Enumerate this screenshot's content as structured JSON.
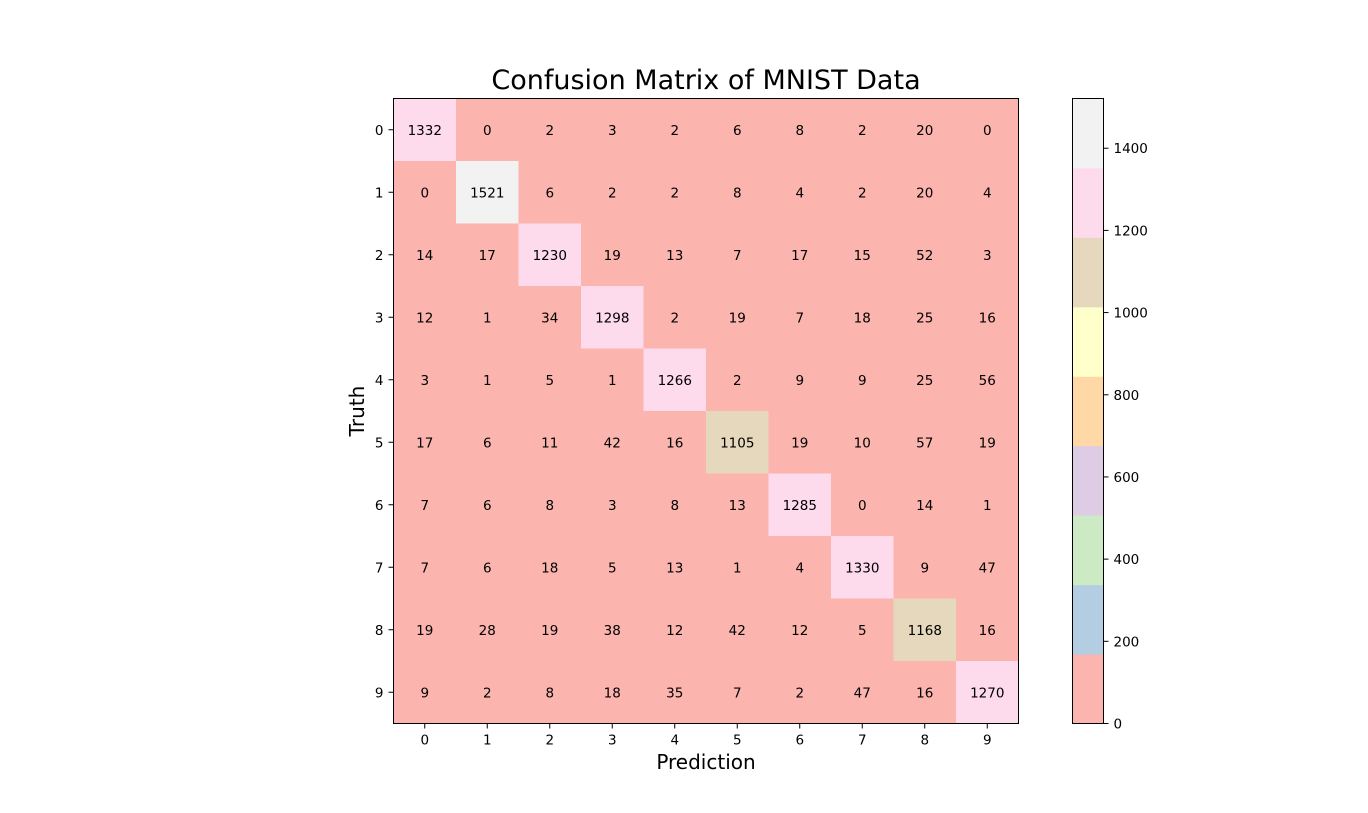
{
  "chart_data": {
    "type": "heatmap",
    "title": "Confusion Matrix of MNIST Data",
    "xlabel": "Prediction",
    "ylabel": "Truth",
    "x_categories": [
      "0",
      "1",
      "2",
      "3",
      "4",
      "5",
      "6",
      "7",
      "8",
      "9"
    ],
    "y_categories": [
      "0",
      "1",
      "2",
      "3",
      "4",
      "5",
      "6",
      "7",
      "8",
      "9"
    ],
    "matrix": [
      [
        1332,
        0,
        2,
        3,
        2,
        6,
        8,
        2,
        20,
        0
      ],
      [
        0,
        1521,
        6,
        2,
        2,
        8,
        4,
        2,
        20,
        4
      ],
      [
        14,
        17,
        1230,
        19,
        13,
        7,
        17,
        15,
        52,
        3
      ],
      [
        12,
        1,
        34,
        1298,
        2,
        19,
        7,
        18,
        25,
        16
      ],
      [
        3,
        1,
        5,
        1,
        1266,
        2,
        9,
        9,
        25,
        56
      ],
      [
        17,
        6,
        11,
        42,
        16,
        1105,
        19,
        10,
        57,
        19
      ],
      [
        7,
        6,
        8,
        3,
        8,
        13,
        1285,
        0,
        14,
        1
      ],
      [
        7,
        6,
        18,
        5,
        13,
        1,
        4,
        1330,
        9,
        47
      ],
      [
        19,
        28,
        19,
        38,
        12,
        42,
        12,
        5,
        1168,
        16
      ],
      [
        9,
        2,
        8,
        18,
        35,
        7,
        2,
        47,
        16,
        1270
      ]
    ],
    "colormap": "Pastel1",
    "colormap_colors": [
      "#fbb4ae",
      "#b3cde3",
      "#ccebc5",
      "#decbe4",
      "#fed9a6",
      "#ffffcc",
      "#e5d8bd",
      "#fddaec",
      "#f2f2f2"
    ],
    "value_range": [
      0,
      1521
    ],
    "colorbar_ticks": [
      0,
      200,
      400,
      600,
      800,
      1000,
      1200,
      1400
    ],
    "colorbar_tick_labels": [
      "0",
      "200",
      "400",
      "600",
      "800",
      "1000",
      "1200",
      "1400"
    ],
    "grid": false,
    "legend": "colorbar-right"
  }
}
